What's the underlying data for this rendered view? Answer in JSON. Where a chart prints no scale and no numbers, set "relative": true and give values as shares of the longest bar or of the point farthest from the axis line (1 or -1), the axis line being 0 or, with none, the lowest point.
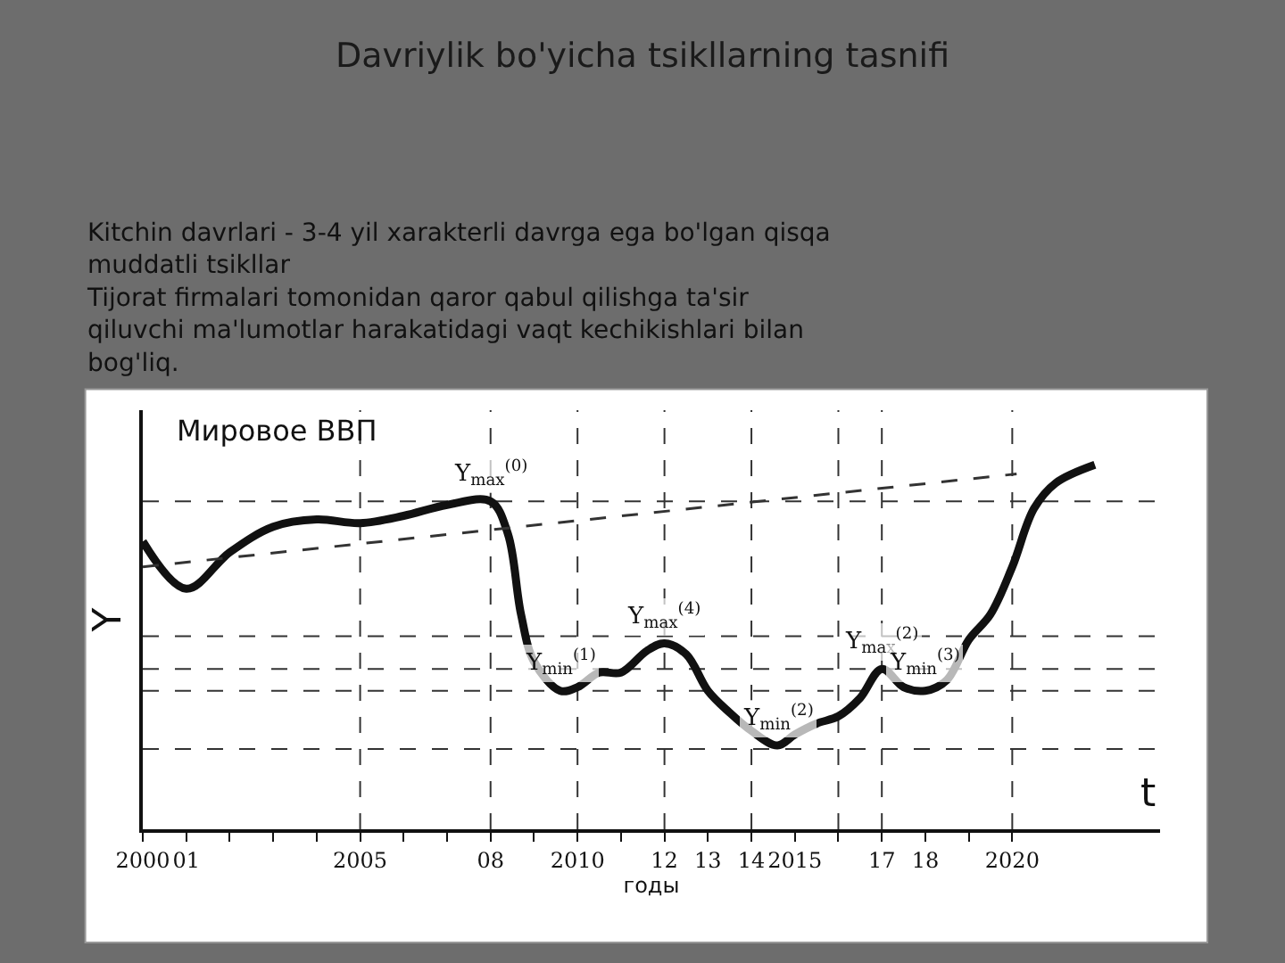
{
  "chart_data": {
    "type": "line",
    "title": "Davriylik bo'yicha tsikllarning tasnifi",
    "subtitle": "Kitchin davrlari - 3-4 yil xarakterli davrga ega bo'lgan qisqa\nmuddatli tsikllar\nTijorat firmalari tomonidan qaror qabul qilishga ta'sir\nqiluvchi ma'lumotlar harakatidagi vaqt kechikishlari bilan\nbog'liq.",
    "xlabel": "годы",
    "ylabel": "Y",
    "annotations": [
      "Мировое ВВП",
      "t",
      {
        "text": "Y$_{max}$$^{(0)}$",
        "x": 2008,
        "y": 0.9
      },
      {
        "text": "Y$_{min}$$^{(1)}$",
        "x": 2009.6,
        "y": 0.38
      },
      {
        "text": "Y$_{max}$$^{(4)}$",
        "x": 2012,
        "y": 0.51
      },
      {
        "text": "Y$_{min}$$^{(2)}$",
        "x": 2014.6,
        "y": 0.23
      },
      {
        "text": "Y$_{max}$$^{(2)}$",
        "x": 2017,
        "y": 0.44
      },
      {
        "text": "Y$_{min}$$^{(3)}$",
        "x": 2018,
        "y": 0.38
      }
    ],
    "relative": true,
    "x": [
      2000,
      2001,
      2002,
      2003,
      2004,
      2005,
      2006,
      2007,
      2008,
      2008.4,
      2008.7,
      2009,
      2009.6,
      2010,
      2010.5,
      2011,
      2011.6,
      2012,
      2012.5,
      2013,
      2013.5,
      2014,
      2014.6,
      2015,
      2015.5,
      2016,
      2016.5,
      2017,
      2017.5,
      2018,
      2018.5,
      2019,
      2019.5,
      2020,
      2020.5,
      2021,
      2021.9
    ],
    "series": [
      {
        "color": "#111111",
        "values": [
          0.79,
          0.66,
          0.76,
          0.83,
          0.85,
          0.84,
          0.86,
          0.89,
          0.9,
          0.81,
          0.59,
          0.46,
          0.38,
          0.39,
          0.43,
          0.43,
          0.49,
          0.51,
          0.48,
          0.38,
          0.32,
          0.27,
          0.23,
          0.26,
          0.29,
          0.31,
          0.36,
          0.44,
          0.39,
          0.38,
          0.41,
          0.52,
          0.59,
          0.72,
          0.88,
          0.95,
          1.0
        ]
      },
      {
        "type": "line",
        "color": "#333333",
        "line_style": "dashed",
        "x": [
          2000,
          2020.1
        ],
        "values": [
          0.72,
          0.975
        ]
      }
    ],
    "xlim": [
      2000,
      2023.4
    ],
    "xticks": [
      2000,
      {
        "value": 2001,
        "label": "01"
      },
      {
        "value": 2002,
        "label": null
      },
      {
        "value": 2003,
        "label": null
      },
      {
        "value": 2004,
        "label": null
      },
      2005,
      {
        "value": 2006,
        "label": null
      },
      {
        "value": 2007,
        "label": null
      },
      {
        "value": 2008,
        "label": "08"
      },
      {
        "value": 2009,
        "label": null
      },
      2010,
      {
        "value": 2011,
        "label": null
      },
      {
        "value": 2012,
        "label": "12"
      },
      {
        "value": 2013,
        "label": "13"
      },
      {
        "value": 2014,
        "label": "14"
      },
      2015,
      {
        "value": 2016,
        "label": null
      },
      {
        "value": 2017,
        "label": "17"
      },
      {
        "value": 2018,
        "label": "18"
      },
      {
        "value": 2019,
        "label": null
      },
      2020
    ],
    "ref_lines": [
      {
        "axis": "x",
        "value": 2005,
        "color": "#333333",
        "line_style": "dashed"
      },
      {
        "axis": "x",
        "value": 2008,
        "color": "#333333",
        "line_style": "dashed"
      },
      {
        "axis": "x",
        "value": 2010,
        "color": "#333333",
        "line_style": "dashed"
      },
      {
        "axis": "x",
        "value": 2012,
        "color": "#333333",
        "line_style": "dashed"
      },
      {
        "axis": "x",
        "value": 2014,
        "color": "#333333",
        "line_style": "dashed"
      },
      {
        "axis": "x",
        "value": 2016,
        "color": "#333333",
        "line_style": "dashed"
      },
      {
        "axis": "x",
        "value": 2017,
        "color": "#333333",
        "line_style": "dashed"
      },
      {
        "axis": "x",
        "value": 2020,
        "color": "#333333",
        "line_style": "dashed"
      },
      {
        "axis": "y",
        "value": 0.9,
        "color": "#333333",
        "line_style": "dashed"
      },
      {
        "axis": "y",
        "value": 0.53,
        "color": "#333333",
        "line_style": "dashed"
      },
      {
        "axis": "y",
        "value": 0.44,
        "color": "#333333",
        "line_style": "dashed"
      },
      {
        "axis": "y",
        "value": 0.38,
        "color": "#333333",
        "line_style": "dashed"
      },
      {
        "axis": "y",
        "value": 0.22,
        "color": "#333333",
        "line_style": "dashed"
      }
    ]
  }
}
